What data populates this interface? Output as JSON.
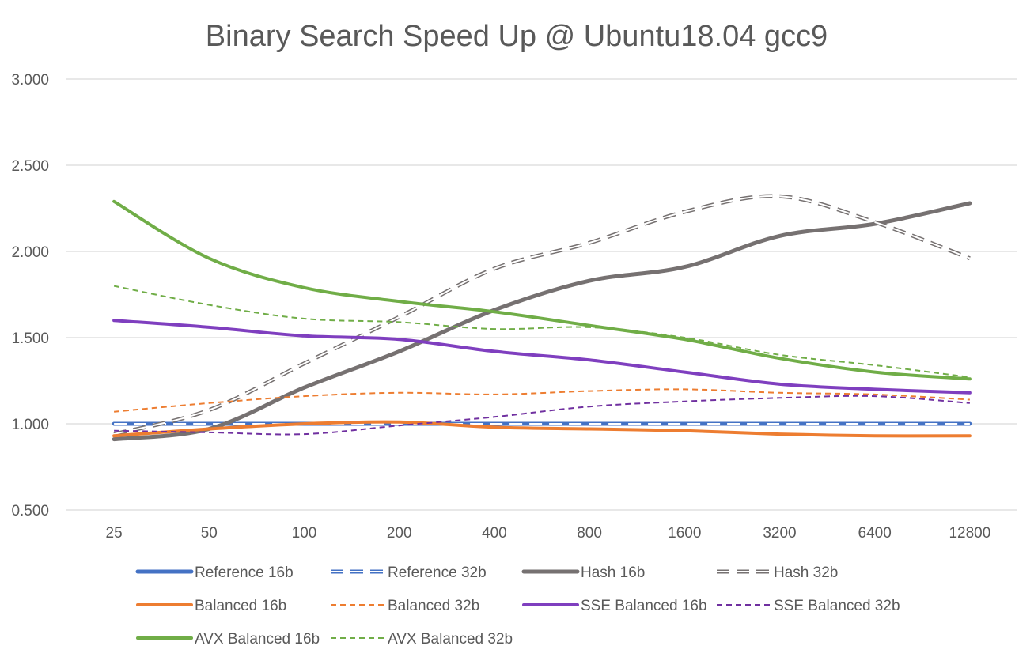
{
  "chart_data": {
    "type": "line",
    "title": "Binary Search Speed Up @ Ubuntu18.04 gcc9",
    "xlabel": "",
    "ylabel": "",
    "categories": [
      "25",
      "50",
      "100",
      "200",
      "400",
      "800",
      "1600",
      "3200",
      "6400",
      "12800"
    ],
    "ylim": [
      0.5,
      3.0
    ],
    "yticks": [
      "0.500",
      "1.000",
      "1.500",
      "2.000",
      "2.500",
      "3.000"
    ],
    "grid": "horizontal",
    "legend": "bottom",
    "series": [
      {
        "name": "Reference 16b",
        "color": "#4472C4",
        "dash": "solid",
        "width": 5,
        "values": [
          1.0,
          1.0,
          1.0,
          1.0,
          1.0,
          1.0,
          1.0,
          1.0,
          1.0,
          1.0
        ]
      },
      {
        "name": "Reference 32b",
        "color": "#4472C4",
        "dash": "long-dash-outline",
        "width": 3,
        "values": [
          1.0,
          1.0,
          1.0,
          1.0,
          1.0,
          1.0,
          1.0,
          1.0,
          1.0,
          1.0
        ]
      },
      {
        "name": "Hash 16b",
        "color": "#767171",
        "dash": "solid",
        "width": 5,
        "values": [
          0.91,
          0.97,
          1.21,
          1.42,
          1.66,
          1.83,
          1.91,
          2.09,
          2.16,
          2.28
        ]
      },
      {
        "name": "Hash 32b",
        "color": "#767171",
        "dash": "long-dash-outline",
        "width": 3,
        "values": [
          0.94,
          1.08,
          1.35,
          1.62,
          1.9,
          2.05,
          2.23,
          2.32,
          2.17,
          1.96
        ]
      },
      {
        "name": "Balanced 16b",
        "color": "#ED7D31",
        "dash": "solid",
        "width": 4,
        "values": [
          0.93,
          0.97,
          1.0,
          1.01,
          0.98,
          0.97,
          0.96,
          0.94,
          0.93,
          0.93
        ]
      },
      {
        "name": "Balanced 32b",
        "color": "#ED7D31",
        "dash": "short-dash",
        "width": 2,
        "values": [
          1.07,
          1.12,
          1.16,
          1.18,
          1.17,
          1.19,
          1.2,
          1.18,
          1.17,
          1.14
        ]
      },
      {
        "name": "SSE Balanced 16b",
        "color": "#7F3FBF",
        "dash": "solid",
        "width": 4,
        "values": [
          1.6,
          1.56,
          1.51,
          1.49,
          1.42,
          1.37,
          1.3,
          1.23,
          1.2,
          1.18
        ]
      },
      {
        "name": "SSE Balanced 32b",
        "color": "#7030A0",
        "dash": "short-dash",
        "width": 2,
        "values": [
          0.96,
          0.95,
          0.94,
          0.99,
          1.04,
          1.1,
          1.13,
          1.15,
          1.16,
          1.12
        ]
      },
      {
        "name": "AVX Balanced 16b",
        "color": "#70AD47",
        "dash": "solid",
        "width": 4,
        "values": [
          2.29,
          1.96,
          1.79,
          1.71,
          1.65,
          1.57,
          1.49,
          1.38,
          1.3,
          1.26
        ]
      },
      {
        "name": "AVX Balanced 32b",
        "color": "#70AD47",
        "dash": "short-dash",
        "width": 2,
        "values": [
          1.8,
          1.69,
          1.61,
          1.59,
          1.55,
          1.56,
          1.5,
          1.4,
          1.34,
          1.27
        ]
      }
    ]
  }
}
